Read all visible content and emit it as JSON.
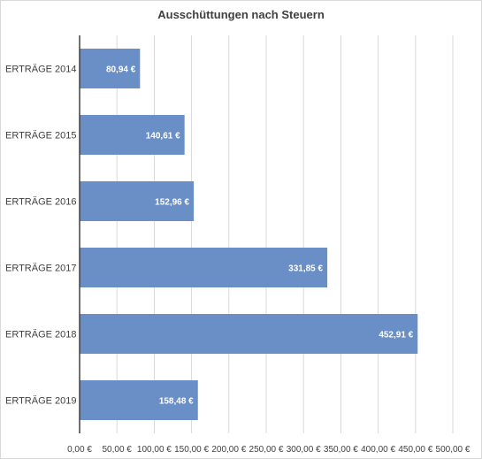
{
  "chart_data": {
    "type": "bar",
    "orientation": "horizontal",
    "title": "Ausschüttungen nach Steuern",
    "categories": [
      "ERTRÄGE 2014",
      "ERTRÄGE 2015",
      "ERTRÄGE 2016",
      "ERTRÄGE 2017",
      "ERTRÄGE 2018",
      "ERTRÄGE 2019"
    ],
    "values": [
      80.94,
      140.61,
      152.96,
      331.85,
      452.91,
      158.48
    ],
    "data_labels": [
      "80,94 €",
      "140,61 €",
      "152,96 €",
      "331,85 €",
      "452,91 €",
      "158,48 €"
    ],
    "xlim": [
      0,
      500
    ],
    "xticks": [
      0,
      50,
      100,
      150,
      200,
      250,
      300,
      350,
      400,
      450,
      500
    ],
    "xtick_labels": [
      "0,00 €",
      "50,00 €",
      "100,00 €",
      "150,00 €",
      "200,00 €",
      "250,00 €",
      "300,00 €",
      "350,00 €",
      "400,00 €",
      "450,00 €",
      "500,00 €"
    ],
    "grid": true,
    "bar_color": "#6a8fc7",
    "grid_color": "#d9d9d9",
    "axis_color": "#404040"
  }
}
